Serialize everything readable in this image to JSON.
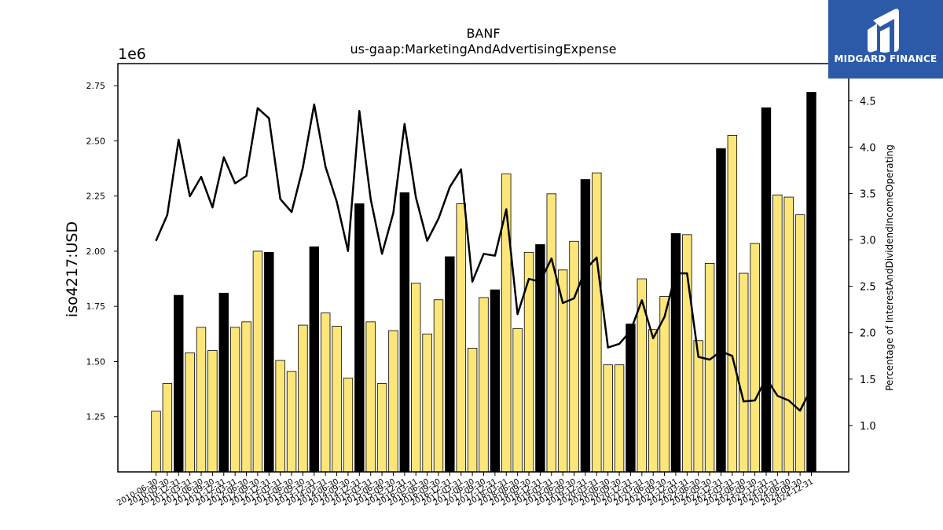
{
  "chart_data": {
    "type": "bar",
    "title": "BANF",
    "subtitle": "us-gaap:MarketingAndAdvertisingExpense",
    "ylabel": "iso4217:USD",
    "y2label": "Percentage of InterestAndDividendIncomeOperating",
    "y_offset_text": "1e6",
    "ylim": [
      1.0,
      2.85
    ],
    "y2lim": [
      0.5,
      4.9
    ],
    "yticks": [
      "1.25",
      "1.50",
      "1.75",
      "2.00",
      "2.25",
      "2.50",
      "2.75"
    ],
    "y2ticks": [
      "1.0",
      "1.5",
      "2.0",
      "2.5",
      "3.0",
      "3.5",
      "4.0",
      "4.5"
    ],
    "categories": [
      "2010-06-30",
      "2010-09-30",
      "2010-12-31",
      "2011-03-31",
      "2011-06-30",
      "2011-09-30",
      "2011-12-31",
      "2012-03-31",
      "2012-06-30",
      "2012-09-30",
      "2012-12-31",
      "2013-03-31",
      "2013-06-30",
      "2013-09-30",
      "2013-12-31",
      "2014-03-31",
      "2014-06-30",
      "2014-09-30",
      "2014-12-31",
      "2015-03-31",
      "2015-06-30",
      "2015-09-30",
      "2015-12-31",
      "2016-03-31",
      "2016-06-30",
      "2016-09-30",
      "2016-12-31",
      "2017-03-31",
      "2017-06-30",
      "2017-09-30",
      "2017-12-31",
      "2018-03-31",
      "2018-06-30",
      "2018-09-30",
      "2018-12-31",
      "2019-03-31",
      "2019-06-30",
      "2019-09-30",
      "2019-12-31",
      "2020-03-31",
      "2020-06-30",
      "2020-09-30",
      "2020-12-31",
      "2021-03-31",
      "2021-06-30",
      "2021-09-30",
      "2021-12-31",
      "2022-03-31",
      "2022-06-30",
      "2022-09-30",
      "2022-12-31",
      "2023-03-31",
      "2023-06-30",
      "2023-09-30",
      "2023-12-31",
      "2024-03-31",
      "2024-06-30",
      "2024-09-30",
      "2024-12-31"
    ],
    "series": [
      {
        "values": [
          1.275,
          1.4,
          1.8,
          1.54,
          1.655,
          1.55,
          1.81,
          1.655,
          1.68,
          2.0,
          1.995,
          1.505,
          1.455,
          1.665,
          2.02,
          1.72,
          1.66,
          1.425,
          2.215,
          1.68,
          1.4,
          1.64,
          2.265,
          1.855,
          1.625,
          1.78,
          1.975,
          2.215,
          1.56,
          1.79,
          1.825,
          2.35,
          1.65,
          1.995,
          2.03,
          2.26,
          1.915,
          2.045,
          2.325,
          2.355,
          1.485,
          1.485,
          1.67,
          1.875,
          1.645,
          1.795,
          2.08,
          2.075,
          1.595,
          1.945,
          2.465,
          2.525,
          1.9,
          2.035,
          2.65,
          2.255,
          2.245,
          2.165,
          2.72
        ],
        "highlight": [
          false,
          false,
          true,
          false,
          false,
          false,
          true,
          false,
          false,
          false,
          true,
          false,
          false,
          false,
          true,
          false,
          false,
          false,
          true,
          false,
          false,
          false,
          true,
          false,
          false,
          false,
          true,
          false,
          false,
          false,
          true,
          false,
          false,
          false,
          true,
          false,
          false,
          false,
          true,
          false,
          false,
          false,
          true,
          false,
          false,
          false,
          true,
          false,
          false,
          false,
          true,
          false,
          false,
          false,
          true,
          false,
          false,
          false,
          true
        ]
      },
      {
        "name": "Percentage of InterestAndDividendIncomeOperating",
        "axis": "right",
        "values": [
          2.99,
          3.27,
          4.08,
          3.47,
          3.68,
          3.35,
          3.89,
          3.61,
          3.69,
          4.42,
          4.31,
          3.44,
          3.3,
          3.78,
          4.46,
          3.79,
          3.41,
          2.88,
          4.39,
          3.44,
          2.85,
          3.29,
          4.25,
          3.46,
          2.99,
          3.23,
          3.57,
          3.76,
          2.55,
          2.85,
          2.83,
          3.33,
          2.2,
          2.58,
          2.55,
          2.8,
          2.32,
          2.37,
          2.68,
          2.81,
          1.84,
          1.88,
          2.02,
          2.35,
          1.94,
          2.17,
          2.64,
          2.64,
          1.74,
          1.71,
          1.8,
          1.75,
          1.26,
          1.27,
          1.51,
          1.32,
          1.27,
          1.16,
          1.4
        ]
      }
    ],
    "colors": {
      "bar": "#fce67a",
      "bar_highlight": "#000000",
      "line": "#000000"
    }
  },
  "logo": {
    "text": "MIDGARD FINANCE"
  }
}
